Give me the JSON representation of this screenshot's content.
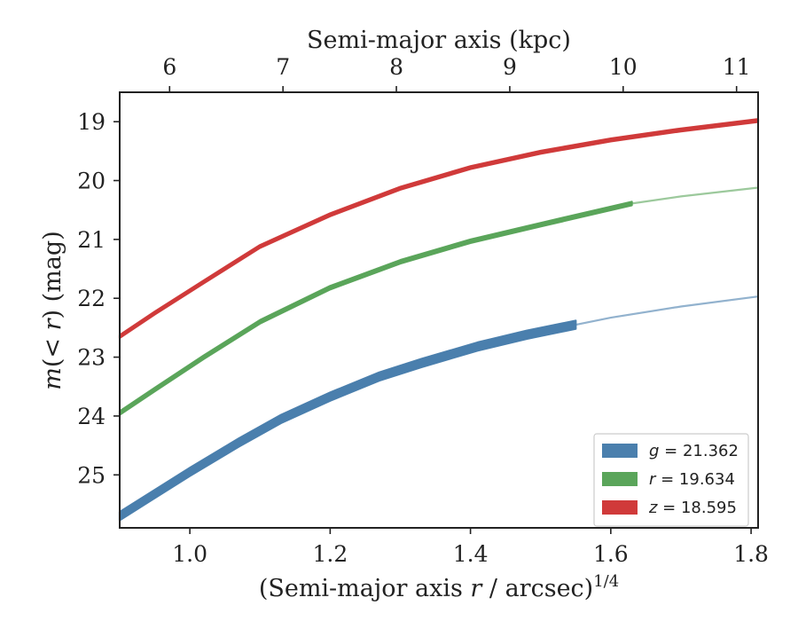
{
  "chart_data": {
    "type": "line",
    "xlabel": {
      "pre": "(Semi-major axis ",
      "var": "r",
      "post": " / arcsec)",
      "sup": "1/4"
    },
    "x2label": "Semi-major axis (kpc)",
    "ylabel": {
      "var1": "m",
      "mid": "(< ",
      "var2": "r",
      "post": ") (mag)"
    },
    "xlim": [
      0.9,
      1.81
    ],
    "ylim": [
      25.9,
      18.5
    ],
    "y_inverted": true,
    "xticks": [
      1.0,
      1.2,
      1.4,
      1.6,
      1.8
    ],
    "xtick_labels": [
      "1.0",
      "1.2",
      "1.4",
      "1.6",
      "1.8"
    ],
    "yticks": [
      19,
      20,
      21,
      22,
      23,
      24,
      25
    ],
    "ytick_labels": [
      "19",
      "20",
      "21",
      "22",
      "23",
      "24",
      "25"
    ],
    "x2ticks": [
      6,
      7,
      8,
      9,
      10,
      11
    ],
    "x2tick_labels": [
      "6",
      "7",
      "8",
      "9",
      "10",
      "11"
    ],
    "x2lim_kpc": [
      5.56,
      11.19
    ],
    "legend_position": "lower-right",
    "series": [
      {
        "name": "g = 21.362",
        "legend_var": "g",
        "legend_value": "= 21.362",
        "color": "#4a7fad",
        "band_width_mag": 0.14,
        "solid_until_x": 1.55,
        "x": [
          0.9,
          0.94,
          1.0,
          1.07,
          1.13,
          1.2,
          1.27,
          1.33,
          1.41,
          1.48,
          1.55,
          1.6,
          1.7,
          1.81
        ],
        "y": [
          25.7,
          25.4,
          24.95,
          24.45,
          24.05,
          23.67,
          23.33,
          23.1,
          22.82,
          22.62,
          22.45,
          22.33,
          22.14,
          21.97
        ]
      },
      {
        "name": "r = 19.634",
        "legend_var": "r",
        "legend_value": "= 19.634",
        "color": "#5aa55a",
        "band_width_mag": 0.06,
        "solid_until_x": 1.63,
        "x": [
          0.9,
          0.95,
          1.02,
          1.1,
          1.2,
          1.3,
          1.4,
          1.5,
          1.63,
          1.7,
          1.81
        ],
        "y": [
          23.95,
          23.55,
          23.0,
          22.4,
          21.82,
          21.38,
          21.03,
          20.75,
          20.39,
          20.27,
          20.12
        ]
      },
      {
        "name": "z = 18.595",
        "legend_var": "z",
        "legend_value": "= 18.595",
        "color": "#d03a3a",
        "band_width_mag": 0.05,
        "solid_until_x": 1.81,
        "x": [
          0.9,
          0.95,
          1.02,
          1.1,
          1.2,
          1.3,
          1.4,
          1.5,
          1.6,
          1.7,
          1.81
        ],
        "y": [
          22.65,
          22.25,
          21.72,
          21.12,
          20.58,
          20.13,
          19.78,
          19.52,
          19.31,
          19.14,
          18.98
        ]
      }
    ]
  }
}
